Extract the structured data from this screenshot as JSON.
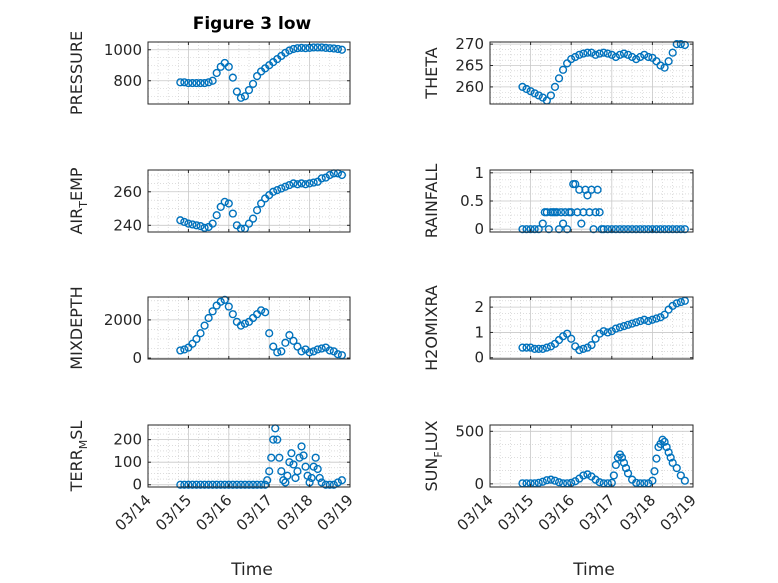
{
  "title": "Figure 3 low",
  "colors": {
    "marker": "#0072BD",
    "axis": "#262626",
    "grid": "#c8c8c8"
  },
  "x_ticks": [
    "03/14",
    "03/15",
    "03/16",
    "03/17",
    "03/18",
    "03/19"
  ],
  "xlabel": "Time",
  "chart_data": [
    {
      "type": "scatter",
      "ylabel": "PRESSURE",
      "ylim": [
        650,
        1050
      ],
      "yticks": [
        800,
        1000
      ],
      "grid": true,
      "x": [
        14.8,
        14.9,
        15.0,
        15.1,
        15.2,
        15.3,
        15.4,
        15.5,
        15.6,
        15.7,
        15.8,
        15.9,
        16.0,
        16.1,
        16.2,
        16.3,
        16.4,
        16.5,
        16.6,
        16.7,
        16.8,
        16.9,
        17.0,
        17.1,
        17.2,
        17.3,
        17.4,
        17.5,
        17.6,
        17.7,
        17.8,
        17.9,
        18.0,
        18.1,
        18.2,
        18.3,
        18.4,
        18.5,
        18.6,
        18.7,
        18.8
      ],
      "y": [
        790,
        790,
        785,
        785,
        785,
        785,
        785,
        790,
        800,
        850,
        890,
        915,
        890,
        820,
        730,
        690,
        700,
        740,
        780,
        830,
        860,
        880,
        900,
        920,
        940,
        960,
        980,
        995,
        1005,
        1010,
        1012,
        1010,
        1012,
        1015,
        1015,
        1015,
        1012,
        1010,
        1008,
        1005,
        1000
      ]
    },
    {
      "type": "scatter",
      "ylabel": "THETA",
      "ylim": [
        256,
        270.5
      ],
      "yticks": [
        260,
        265,
        270
      ],
      "grid": true,
      "x": [
        14.8,
        14.9,
        15.0,
        15.1,
        15.2,
        15.3,
        15.4,
        15.5,
        15.6,
        15.7,
        15.8,
        15.9,
        16.0,
        16.1,
        16.2,
        16.3,
        16.4,
        16.5,
        16.6,
        16.7,
        16.8,
        16.9,
        17.0,
        17.1,
        17.2,
        17.3,
        17.4,
        17.5,
        17.6,
        17.7,
        17.8,
        17.9,
        18.0,
        18.1,
        18.2,
        18.3,
        18.4,
        18.5,
        18.6,
        18.7,
        18.8
      ],
      "y": [
        260,
        259.5,
        259,
        258.5,
        258,
        257.5,
        256.8,
        258,
        260,
        262,
        264,
        265.5,
        266.5,
        267,
        267.5,
        267.8,
        268,
        268,
        267.5,
        267.8,
        268,
        267.8,
        267.5,
        267,
        267.5,
        267.8,
        267.5,
        267,
        266.5,
        267,
        267.5,
        267,
        266.8,
        266,
        265,
        264.5,
        266,
        268,
        270,
        270,
        269.8
      ]
    },
    {
      "type": "scatter",
      "ylabel": "AIR_TEMP",
      "ylim": [
        236,
        273
      ],
      "yticks": [
        240,
        260
      ],
      "grid": true,
      "x": [
        14.8,
        14.9,
        15.0,
        15.1,
        15.2,
        15.3,
        15.4,
        15.5,
        15.6,
        15.7,
        15.8,
        15.9,
        16.0,
        16.1,
        16.2,
        16.3,
        16.4,
        16.5,
        16.6,
        16.7,
        16.8,
        16.9,
        17.0,
        17.1,
        17.2,
        17.3,
        17.4,
        17.5,
        17.6,
        17.7,
        17.8,
        17.9,
        18.0,
        18.1,
        18.2,
        18.3,
        18.4,
        18.5,
        18.6,
        18.7,
        18.8
      ],
      "y": [
        243,
        242,
        241,
        240.5,
        240,
        239.5,
        238.5,
        239,
        241,
        246,
        251,
        254,
        253,
        247,
        240,
        238,
        238,
        241,
        244,
        249,
        253,
        256,
        258,
        260,
        261,
        262,
        263,
        264,
        265,
        264.5,
        265,
        264.5,
        265,
        265.5,
        266,
        268,
        268.5,
        270,
        271,
        271,
        270
      ]
    },
    {
      "type": "scatter",
      "ylabel": "RAINFALL",
      "ylim": [
        -0.05,
        1.05
      ],
      "yticks": [
        0,
        0.5,
        1
      ],
      "yticklabels": [
        "0",
        "0.5",
        "1"
      ],
      "grid": true,
      "x": [
        14.8,
        14.9,
        15.0,
        15.1,
        15.2,
        15.3,
        15.35,
        15.4,
        15.45,
        15.5,
        15.55,
        15.6,
        15.65,
        15.7,
        15.75,
        15.8,
        15.85,
        15.9,
        15.95,
        16.0,
        16.05,
        16.1,
        16.15,
        16.2,
        16.25,
        16.3,
        16.35,
        16.4,
        16.45,
        16.5,
        16.55,
        16.6,
        16.65,
        16.7,
        16.75,
        16.8,
        16.9,
        17.0,
        17.1,
        17.2,
        17.3,
        17.4,
        17.5,
        17.6,
        17.7,
        17.8,
        17.9,
        18.0,
        18.1,
        18.2,
        18.3,
        18.4,
        18.5,
        18.6,
        18.7,
        18.8
      ],
      "y": [
        0,
        0,
        0,
        0,
        0,
        0.1,
        0.3,
        0.3,
        0,
        0.3,
        0.3,
        0.3,
        0.3,
        0,
        0.3,
        0.1,
        0.3,
        0,
        0.3,
        0.3,
        0.8,
        0.8,
        0.3,
        0.7,
        0.1,
        0.3,
        0.7,
        0.6,
        0.3,
        0.7,
        0,
        0.3,
        0.7,
        0.3,
        0,
        0,
        0,
        0,
        0,
        0,
        0,
        0,
        0,
        0,
        0,
        0,
        0,
        0,
        0,
        0,
        0,
        0,
        0,
        0,
        0,
        0
      ]
    },
    {
      "type": "scatter",
      "ylabel": "MIXDEPTH",
      "ylim": [
        -50,
        3200
      ],
      "yticks": [
        0,
        2000
      ],
      "grid": true,
      "x": [
        14.8,
        14.9,
        15.0,
        15.1,
        15.2,
        15.3,
        15.4,
        15.5,
        15.6,
        15.7,
        15.8,
        15.9,
        16.0,
        16.1,
        16.2,
        16.3,
        16.4,
        16.5,
        16.6,
        16.7,
        16.8,
        16.9,
        17.0,
        17.1,
        17.2,
        17.3,
        17.4,
        17.5,
        17.6,
        17.7,
        17.8,
        17.9,
        18.0,
        18.1,
        18.2,
        18.3,
        18.4,
        18.5,
        18.6,
        18.7,
        18.8
      ],
      "y": [
        400,
        450,
        550,
        750,
        1000,
        1300,
        1700,
        2100,
        2450,
        2750,
        2950,
        3050,
        2700,
        2300,
        1900,
        1700,
        1800,
        1900,
        2100,
        2300,
        2500,
        2400,
        1300,
        600,
        300,
        350,
        800,
        1200,
        900,
        600,
        350,
        450,
        300,
        350,
        450,
        500,
        550,
        400,
        350,
        200,
        150
      ]
    },
    {
      "type": "scatter",
      "ylabel": "H2OMIXRA",
      "ylim": [
        -0.05,
        2.4
      ],
      "yticks": [
        0,
        1,
        2
      ],
      "grid": true,
      "x": [
        14.8,
        14.9,
        15.0,
        15.1,
        15.2,
        15.3,
        15.4,
        15.5,
        15.6,
        15.7,
        15.8,
        15.9,
        16.0,
        16.1,
        16.2,
        16.3,
        16.4,
        16.5,
        16.6,
        16.7,
        16.8,
        16.9,
        17.0,
        17.1,
        17.2,
        17.3,
        17.4,
        17.5,
        17.6,
        17.7,
        17.8,
        17.9,
        18.0,
        18.1,
        18.2,
        18.3,
        18.4,
        18.5,
        18.6,
        18.7,
        18.8
      ],
      "y": [
        0.4,
        0.4,
        0.4,
        0.35,
        0.35,
        0.35,
        0.4,
        0.45,
        0.55,
        0.7,
        0.85,
        0.95,
        0.75,
        0.45,
        0.3,
        0.35,
        0.4,
        0.5,
        0.75,
        0.95,
        1.05,
        1.0,
        1.05,
        1.15,
        1.2,
        1.25,
        1.3,
        1.35,
        1.4,
        1.45,
        1.5,
        1.45,
        1.5,
        1.55,
        1.6,
        1.7,
        1.9,
        2.05,
        2.15,
        2.2,
        2.25
      ]
    },
    {
      "type": "scatter",
      "ylabel": "TERR_MSL",
      "ylim": [
        -10,
        265
      ],
      "yticks": [
        0,
        100,
        200
      ],
      "grid": true,
      "x": [
        14.8,
        14.9,
        15.0,
        15.1,
        15.2,
        15.3,
        15.4,
        15.5,
        15.6,
        15.7,
        15.8,
        15.9,
        16.0,
        16.1,
        16.2,
        16.3,
        16.4,
        16.5,
        16.6,
        16.7,
        16.8,
        16.9,
        16.95,
        17.0,
        17.05,
        17.1,
        17.15,
        17.2,
        17.25,
        17.3,
        17.35,
        17.4,
        17.45,
        17.5,
        17.55,
        17.6,
        17.65,
        17.7,
        17.75,
        17.8,
        17.85,
        17.9,
        17.95,
        18.0,
        18.05,
        18.1,
        18.15,
        18.2,
        18.25,
        18.3,
        18.4,
        18.5,
        18.6,
        18.7,
        18.8
      ],
      "y": [
        0,
        0,
        0,
        0,
        0,
        0,
        0,
        0,
        0,
        0,
        0,
        0,
        0,
        0,
        0,
        0,
        0,
        0,
        0,
        0,
        0,
        0,
        20,
        60,
        120,
        200,
        250,
        200,
        120,
        60,
        20,
        10,
        40,
        100,
        140,
        90,
        30,
        60,
        120,
        170,
        130,
        80,
        40,
        10,
        30,
        80,
        120,
        70,
        30,
        10,
        0,
        0,
        0,
        10,
        20
      ]
    },
    {
      "type": "scatter",
      "ylabel": "SUN_FLUX",
      "ylim": [
        -30,
        560
      ],
      "yticks": [
        0,
        500
      ],
      "grid": true,
      "x": [
        14.8,
        14.9,
        15.0,
        15.1,
        15.2,
        15.3,
        15.4,
        15.5,
        15.6,
        15.7,
        15.8,
        15.9,
        16.0,
        16.1,
        16.2,
        16.3,
        16.4,
        16.5,
        16.6,
        16.7,
        16.8,
        16.9,
        17.0,
        17.05,
        17.1,
        17.15,
        17.2,
        17.25,
        17.3,
        17.35,
        17.4,
        17.5,
        17.6,
        17.7,
        17.8,
        17.9,
        18.0,
        18.05,
        18.1,
        18.15,
        18.2,
        18.25,
        18.3,
        18.35,
        18.4,
        18.45,
        18.5,
        18.6,
        18.7,
        18.8
      ],
      "y": [
        5,
        5,
        5,
        5,
        10,
        20,
        35,
        40,
        30,
        15,
        5,
        5,
        10,
        25,
        50,
        80,
        90,
        70,
        40,
        15,
        5,
        5,
        10,
        80,
        180,
        250,
        280,
        250,
        200,
        150,
        100,
        40,
        10,
        5,
        5,
        5,
        30,
        120,
        240,
        350,
        380,
        420,
        400,
        350,
        300,
        250,
        200,
        150,
        80,
        30
      ]
    }
  ]
}
